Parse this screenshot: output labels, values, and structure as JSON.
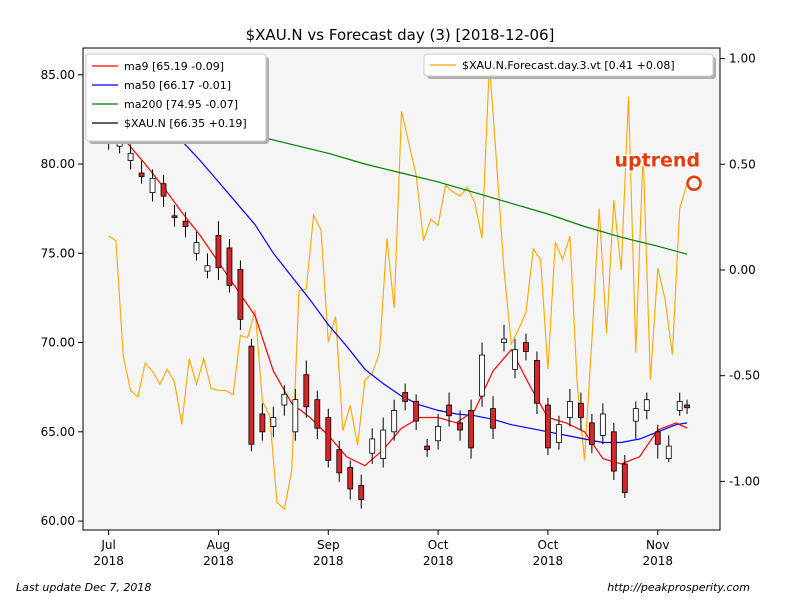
{
  "chart_data": {
    "type": "line",
    "title": "$XAU.N vs Forecast day (3)  [2018-12-06]",
    "xlabel": "",
    "ylabel": "",
    "x_ticks": [
      "Jul\n2018",
      "Aug\n2018",
      "Sep\n2018",
      "Oct\n2018",
      "Oct\n2018",
      "Nov\n2018"
    ],
    "x_tick_days": [
      0,
      30,
      60,
      90,
      120,
      150
    ],
    "xlim": [
      -7,
      167
    ],
    "ylim_left": [
      59.5,
      86.5
    ],
    "ylim_right": [
      -1.23,
      1.05
    ],
    "left_ticks": [
      "60.00",
      "65.00",
      "70.00",
      "75.00",
      "80.00",
      "85.00"
    ],
    "right_ticks": [
      "-1.00",
      "-0.50",
      "0.00",
      "0.50",
      "1.00"
    ],
    "grid": false,
    "series": [
      {
        "name": "ma9 [65.19 -0.09]",
        "color": "#ff0000",
        "axis": "left",
        "x": [
          0,
          5,
          10,
          15,
          20,
          25,
          30,
          35,
          40,
          45,
          50,
          55,
          60,
          65,
          70,
          75,
          80,
          85,
          90,
          95,
          100,
          105,
          110,
          115,
          120,
          125,
          130,
          135,
          140,
          145,
          150,
          155,
          158
        ],
        "y": [
          81.8,
          81.2,
          80.0,
          78.7,
          77.3,
          76.0,
          74.5,
          73.0,
          71.5,
          68.4,
          66.6,
          65.8,
          64.8,
          63.6,
          63.1,
          64.0,
          65.2,
          65.8,
          65.8,
          65.5,
          66.2,
          68.4,
          69.6,
          67.6,
          65.8,
          65.5,
          65.0,
          63.5,
          63.2,
          63.6,
          65.1,
          65.5,
          65.2
        ]
      },
      {
        "name": "ma50 [66.17 -0.01]",
        "color": "#0000ff",
        "axis": "left",
        "x": [
          0,
          5,
          10,
          15,
          20,
          25,
          30,
          35,
          40,
          45,
          50,
          55,
          60,
          65,
          70,
          75,
          80,
          85,
          90,
          95,
          100,
          105,
          110,
          115,
          120,
          125,
          130,
          135,
          140,
          145,
          150,
          155,
          158
        ],
        "y": [
          84.5,
          84.0,
          83.2,
          82.3,
          81.3,
          80.2,
          79.0,
          77.8,
          76.6,
          75.0,
          73.7,
          72.4,
          71.0,
          69.8,
          68.5,
          67.7,
          67.0,
          66.5,
          66.2,
          66.0,
          65.9,
          65.7,
          65.4,
          65.2,
          65.0,
          64.8,
          64.6,
          64.4,
          64.4,
          64.6,
          65.0,
          65.4,
          65.5
        ]
      },
      {
        "name": "ma200 [74.95 -0.07]",
        "color": "#008000",
        "axis": "left",
        "x": [
          0,
          10,
          20,
          30,
          40,
          50,
          60,
          70,
          80,
          90,
          100,
          110,
          120,
          130,
          140,
          150,
          158
        ],
        "y": [
          83.7,
          83.4,
          82.8,
          82.2,
          81.6,
          81.1,
          80.6,
          80.0,
          79.5,
          79.0,
          78.4,
          77.8,
          77.2,
          76.5,
          75.9,
          75.4,
          74.95
        ]
      },
      {
        "name": "$XAU.N.Forecast.day.3.vt [0.41 +0.08]",
        "color": "#ffa500",
        "axis": "right",
        "x": [
          0,
          2,
          4,
          6,
          8,
          10,
          12,
          14,
          16,
          18,
          20,
          22,
          24,
          26,
          28,
          30,
          32,
          34,
          36,
          38,
          40,
          42,
          44,
          46,
          48,
          50,
          52,
          54,
          56,
          58,
          60,
          62,
          64,
          66,
          68,
          70,
          72,
          74,
          76,
          78,
          80,
          82,
          84,
          86,
          88,
          90,
          92,
          94,
          96,
          98,
          100,
          102,
          104,
          106,
          108,
          110,
          112,
          114,
          116,
          118,
          120,
          122,
          124,
          126,
          128,
          130,
          132,
          134,
          136,
          138,
          140,
          142,
          144,
          146,
          148,
          150,
          152,
          154,
          156,
          158
        ],
        "y": [
          0.16,
          0.14,
          -0.41,
          -0.57,
          -0.6,
          -0.44,
          -0.48,
          -0.54,
          -0.47,
          -0.53,
          -0.73,
          -0.42,
          -0.54,
          -0.42,
          -0.56,
          -0.57,
          -0.57,
          -0.59,
          -0.31,
          -0.32,
          -0.19,
          -0.62,
          -0.69,
          -1.1,
          -1.13,
          -0.95,
          -0.1,
          -0.09,
          0.26,
          0.19,
          -0.34,
          -0.22,
          -0.76,
          -0.64,
          -0.83,
          -0.52,
          -0.49,
          -0.39,
          0.15,
          -0.18,
          0.75,
          0.6,
          0.45,
          0.14,
          0.24,
          0.21,
          0.4,
          0.37,
          0.35,
          0.39,
          0.32,
          0.15,
          0.98,
          0.5,
          0.0,
          -0.35,
          -0.28,
          -0.2,
          0.1,
          0.05,
          -0.47,
          0.13,
          0.05,
          0.16,
          -0.54,
          -0.9,
          -0.33,
          0.29,
          -0.3,
          0.33,
          0.0,
          0.82,
          -0.39,
          0.56,
          -0.52,
          0.01,
          -0.14,
          -0.4,
          0.29,
          0.41
        ]
      },
      {
        "name": "$XAU.N [66.35 +0.19]",
        "color": "#000000",
        "axis": "left",
        "type": "candlestick",
        "days": [
          0,
          3,
          6,
          9,
          12,
          15,
          18,
          21,
          24,
          27,
          30,
          33,
          36,
          39,
          42,
          45,
          48,
          51,
          54,
          57,
          60,
          63,
          66,
          69,
          72,
          75,
          78,
          81,
          84,
          87,
          90,
          93,
          96,
          99,
          102,
          105,
          108,
          111,
          114,
          117,
          120,
          123,
          126,
          129,
          132,
          135,
          138,
          141,
          144,
          147,
          150,
          153,
          156,
          158
        ],
        "open": [
          81.2,
          81.0,
          80.2,
          79.5,
          78.4,
          78.9,
          77.1,
          76.8,
          75.0,
          74.0,
          76.0,
          75.3,
          74.1,
          69.8,
          66.0,
          65.3,
          66.5,
          65.0,
          68.2,
          66.8,
          65.8,
          64.0,
          63.0,
          62.0,
          63.8,
          63.5,
          65.0,
          67.2,
          66.7,
          64.2,
          64.5,
          66.5,
          65.5,
          66.2,
          67.0,
          66.3,
          70.0,
          68.5,
          70.0,
          69.0,
          66.5,
          64.4,
          65.8,
          66.6,
          65.5,
          64.8,
          65.0,
          63.2,
          65.6,
          66.2,
          65.0,
          63.5,
          66.2,
          66.5
        ],
        "close": [
          81.6,
          81.4,
          80.6,
          79.3,
          79.2,
          78.2,
          77.0,
          76.5,
          75.6,
          74.3,
          74.2,
          73.2,
          71.3,
          64.3,
          65.0,
          65.8,
          67.1,
          66.8,
          66.4,
          65.2,
          63.4,
          62.7,
          61.8,
          61.2,
          64.6,
          65.1,
          66.2,
          66.7,
          65.6,
          64.0,
          65.3,
          65.9,
          65.1,
          64.1,
          69.3,
          65.2,
          70.2,
          69.6,
          69.5,
          66.6,
          64.1,
          65.4,
          66.7,
          65.8,
          64.3,
          66.0,
          62.8,
          61.6,
          66.3,
          66.8,
          64.3,
          64.2,
          66.7,
          66.35
        ],
        "high": [
          82.0,
          81.8,
          81.1,
          80.2,
          79.7,
          79.4,
          77.7,
          77.3,
          76.2,
          75.0,
          76.8,
          75.8,
          74.6,
          70.2,
          66.6,
          66.4,
          67.6,
          67.4,
          69.0,
          67.3,
          66.3,
          64.5,
          63.4,
          62.6,
          65.2,
          65.8,
          66.8,
          67.7,
          67.1,
          64.6,
          66.0,
          67.2,
          66.2,
          66.8,
          70.0,
          67.0,
          71.0,
          70.2,
          70.5,
          69.5,
          66.9,
          65.9,
          67.4,
          67.2,
          66.0,
          66.6,
          65.5,
          63.7,
          66.7,
          67.2,
          65.4,
          64.8,
          67.2,
          66.8
        ],
        "low": [
          80.8,
          80.6,
          79.7,
          78.9,
          77.9,
          77.6,
          76.5,
          75.9,
          74.6,
          73.6,
          73.5,
          72.8,
          70.7,
          63.9,
          64.5,
          64.7,
          65.9,
          64.5,
          65.8,
          64.6,
          63.0,
          62.2,
          61.2,
          60.7,
          63.2,
          63.0,
          64.5,
          66.2,
          65.1,
          63.6,
          64.0,
          65.3,
          64.5,
          63.5,
          66.4,
          64.6,
          69.5,
          68.0,
          69.0,
          66.0,
          63.7,
          64.0,
          65.3,
          65.1,
          63.8,
          64.3,
          62.3,
          61.3,
          64.6,
          65.7,
          63.5,
          63.3,
          65.9,
          66.0
        ]
      }
    ],
    "annotations": [
      {
        "text": "uptrend",
        "color": "#e63b0e",
        "x": 158,
        "y_right": 0.41
      }
    ],
    "legend_left_position": "top-left",
    "legend_right_position": "top-right"
  },
  "footer": {
    "left": "Last update Dec  7, 2018",
    "right": "http://peakprosperity.com"
  }
}
